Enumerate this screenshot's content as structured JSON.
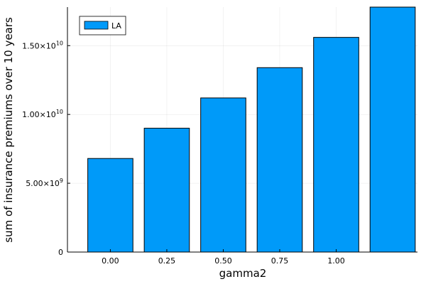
{
  "chart_data": {
    "type": "bar",
    "categories": [
      "0.00",
      "0.25",
      "0.50",
      "0.75",
      "1.00",
      ""
    ],
    "x": [
      0.0,
      0.25,
      0.5,
      0.75,
      1.0,
      1.25
    ],
    "xlabel": "gamma2",
    "ylabel": "sum of insurance premiums over 10 years",
    "xlim": [
      -0.19,
      1.36
    ],
    "ylim": [
      0,
      17800000000
    ],
    "x_ticks": [
      {
        "value": 0.0,
        "label": "0.00"
      },
      {
        "value": 0.25,
        "label": "0.25"
      },
      {
        "value": 0.5,
        "label": "0.50"
      },
      {
        "value": 0.75,
        "label": "0.75"
      },
      {
        "value": 1.0,
        "label": "1.00"
      }
    ],
    "y_ticks": [
      {
        "value": 0,
        "mantissa": "0",
        "exponent": ""
      },
      {
        "value": 5000000000,
        "mantissa": "5.00×10",
        "exponent": "9"
      },
      {
        "value": 10000000000,
        "mantissa": "1.00×10",
        "exponent": "10"
      },
      {
        "value": 15000000000,
        "mantissa": "1.50×10",
        "exponent": "10"
      }
    ],
    "bar_x": [
      0.0,
      0.25,
      0.5,
      0.75,
      1.0,
      1.25
    ],
    "series": [
      {
        "name": "LA",
        "color": "#009af9",
        "values": [
          6800000000,
          9000000000,
          11200000000,
          13400000000,
          15600000000,
          17800000000
        ]
      }
    ],
    "legend": {
      "position": "top-left",
      "entries": [
        "LA"
      ]
    },
    "grid": true
  }
}
